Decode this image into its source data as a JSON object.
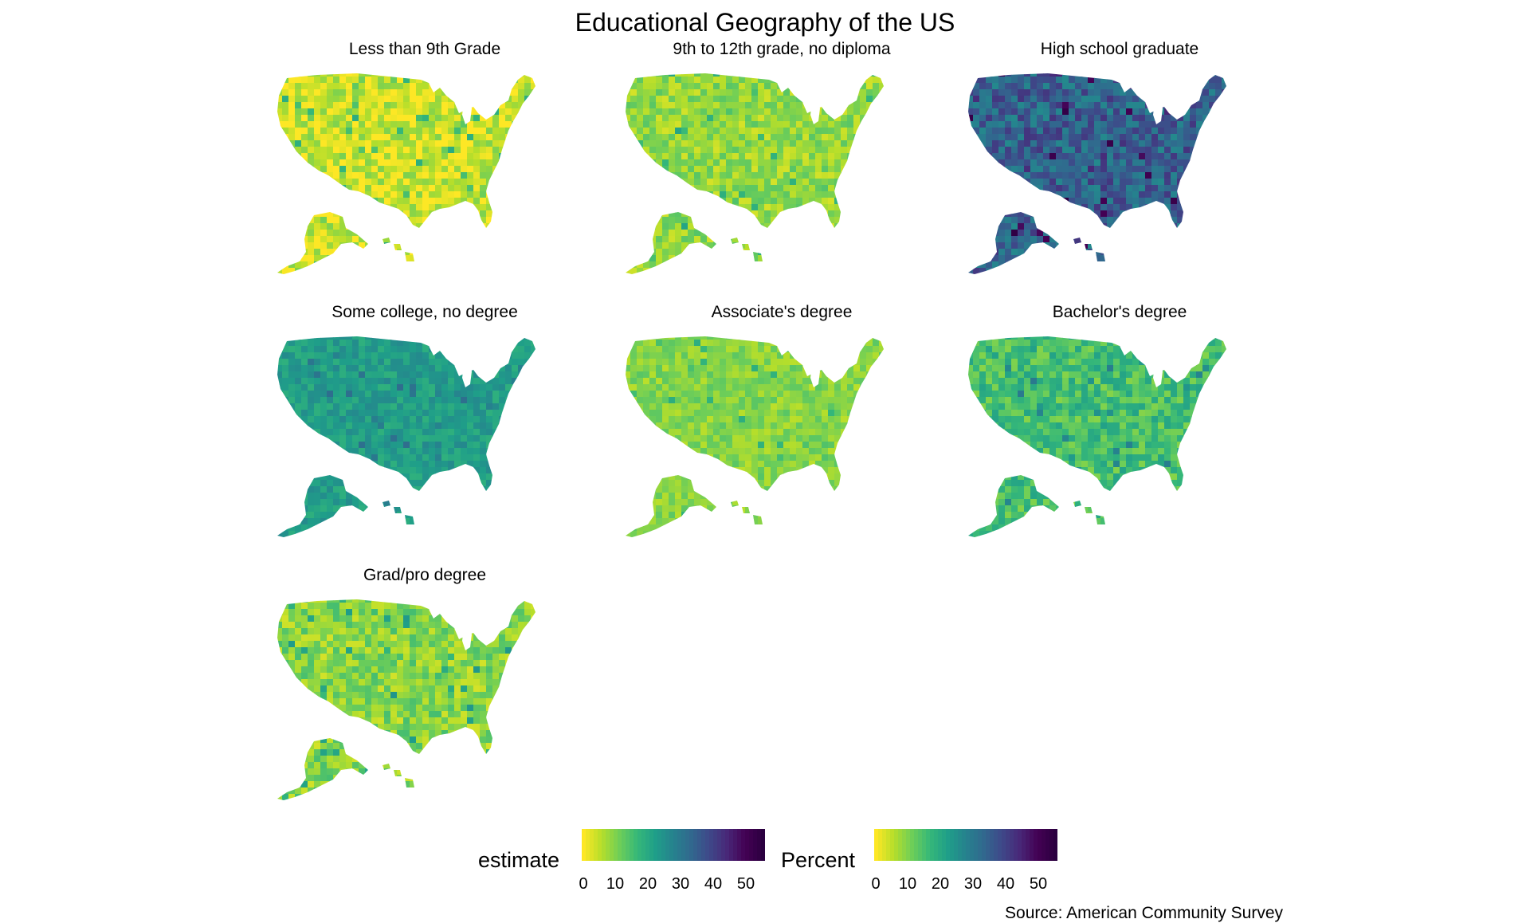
{
  "chart_data": {
    "type": "choropleth",
    "title": "Educational Geography of the US",
    "caption": "Source: American Community Survey",
    "facets": [
      {
        "label": "Less than 9th Grade",
        "base": 4,
        "spread": 6
      },
      {
        "label": "9th to 12th grade, no diploma",
        "base": 8,
        "spread": 5
      },
      {
        "label": "High school graduate",
        "base": 34,
        "spread": 8
      },
      {
        "label": "Some college, no degree",
        "base": 22,
        "spread": 4
      },
      {
        "label": "Associate's degree",
        "base": 9,
        "spread": 4
      },
      {
        "label": "Bachelor's degree",
        "base": 15,
        "spread": 6
      },
      {
        "label": "Grad/pro degree",
        "base": 9,
        "spread": 6
      }
    ],
    "legends": [
      {
        "title": "estimate",
        "ticks": [
          "0",
          "10",
          "20",
          "30",
          "40",
          "50"
        ],
        "min": 0,
        "max": 55
      },
      {
        "title": "Percent",
        "ticks": [
          "0",
          "10",
          "20",
          "30",
          "40",
          "50"
        ],
        "min": 0,
        "max": 55
      }
    ],
    "palette": [
      "#fde725",
      "#b5de2b",
      "#6ece58",
      "#35b779",
      "#1f9e89",
      "#26828e",
      "#31688e",
      "#3e4989",
      "#482878",
      "#440154",
      "#2b0040"
    ]
  }
}
